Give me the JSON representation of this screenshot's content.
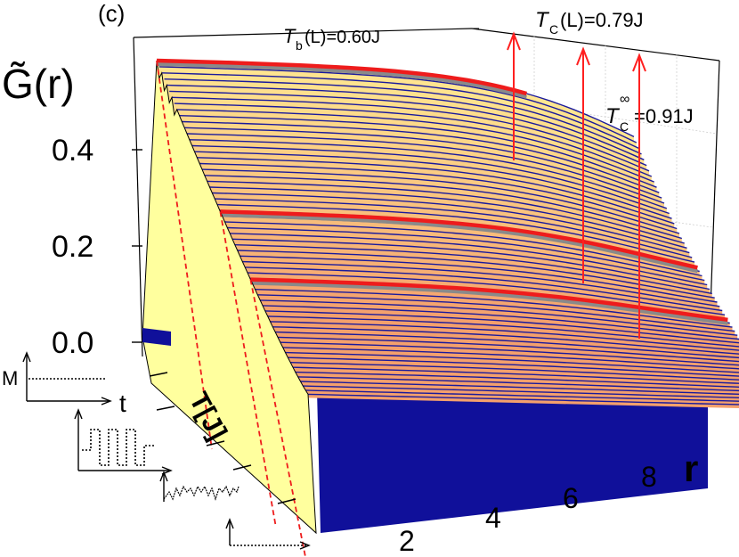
{
  "chart_data": {
    "type": "area",
    "panel_label": "(c)",
    "ylabel": "G̃(r)",
    "xlabel": "r",
    "zlabel": "T[J]",
    "y_ticks": [
      "0.0",
      "0.2",
      "0.4"
    ],
    "x_ticks": [
      "2",
      "4",
      "6",
      "8"
    ],
    "ylim": [
      0,
      0.55
    ],
    "xlim": [
      1,
      9
    ],
    "annotations": {
      "tb": {
        "name": "T",
        "sub": "b",
        "rest": "(L)=0.60J"
      },
      "tc": {
        "name": "T",
        "sub": "C",
        "rest": "(L)=0.79J"
      },
      "tinf": {
        "name": "T",
        "sub": "C",
        "sup": "∞",
        "rest": "=0.91J"
      }
    },
    "inset_labels": {
      "m": "M",
      "t": "t"
    },
    "highlighted_curves": [
      {
        "temperature": 0.6,
        "g_start": 0.51,
        "g_end": 0.35
      },
      {
        "temperature": 0.79,
        "g_start": 0.31,
        "g_end": 0.14
      },
      {
        "temperature": 0.91,
        "g_start": 0.22,
        "g_end": 0.01
      }
    ],
    "colors": {
      "curve": "#1a1a9c",
      "fill_light": "#ffe38a",
      "fill_dark": "#f5a870",
      "floor": "#10109a",
      "side_wall": "#ffff9e",
      "highlight": "#ee1c1c",
      "annotation_arrow": "#ff2020"
    }
  }
}
